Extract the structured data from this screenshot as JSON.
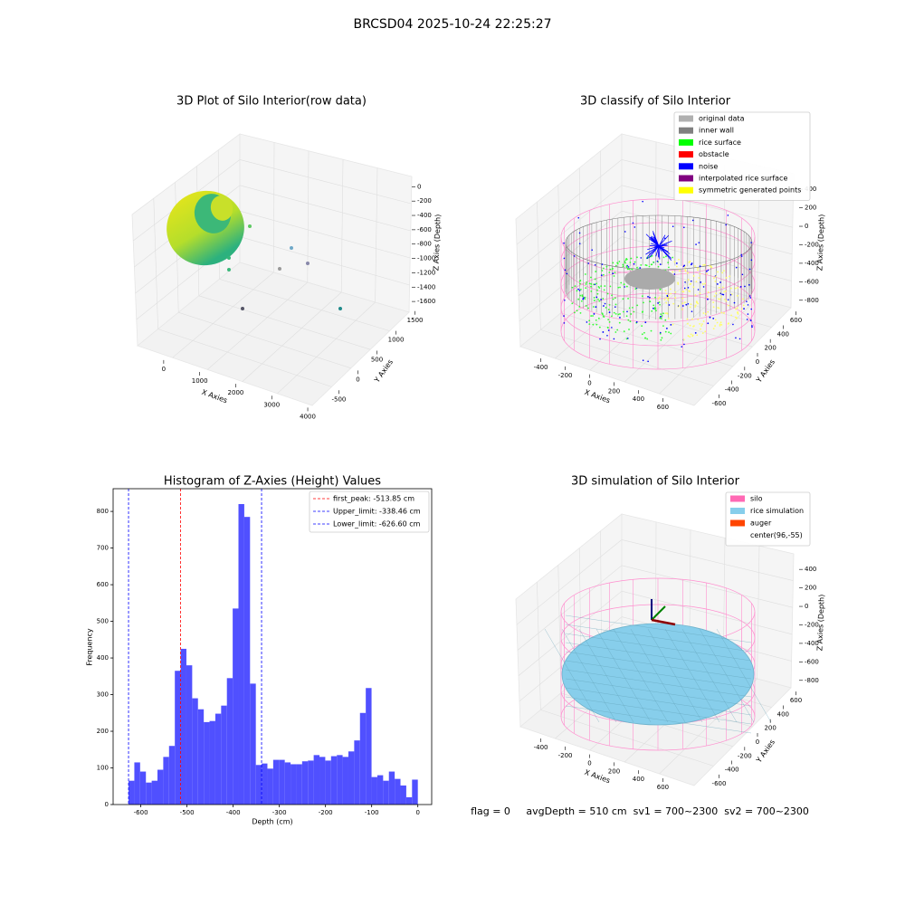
{
  "suptitle": "BRCSD04 2025-10-24 22:25:27",
  "chart_data": [
    {
      "type": "scatter3d",
      "title": "3D Plot of Silo Interior(row data)",
      "xlabel": "X Axies",
      "ylabel": "Y Axies",
      "zlabel": "Z Axies (Depth)",
      "xlim": [
        -600,
        4200
      ],
      "xticks": [
        0,
        1000,
        2000,
        3000,
        4000
      ],
      "ylim": [
        -700,
        1700
      ],
      "yticks": [
        -500,
        0,
        500,
        1000,
        1500
      ],
      "zlim": [
        -1750,
        80
      ],
      "zticks": [
        0,
        -200,
        -400,
        -600,
        -800,
        -1000,
        -1200,
        -1400,
        -1600
      ]
    },
    {
      "type": "scatter3d",
      "title": "3D classify of Silo Interior",
      "xlabel": "X Axies",
      "ylabel": "Y Axies",
      "zlabel": "Z Axies (Depth)",
      "xlim": [
        -560,
        760
      ],
      "xticks": [
        -400,
        -200,
        0,
        200,
        400,
        600
      ],
      "ylim": [
        -720,
        720
      ],
      "yticks": [
        -600,
        -400,
        -200,
        0,
        200,
        400,
        600
      ],
      "zlim": [
        -900,
        470
      ],
      "zticks": [
        400,
        200,
        0,
        -200,
        -400,
        -600,
        -800
      ],
      "series": [
        {
          "name": "original data",
          "color": "#b0b0b0"
        },
        {
          "name": "inner wall",
          "color": "#808080"
        },
        {
          "name": "rice surface",
          "color": "#00ff00"
        },
        {
          "name": "obstacle",
          "color": "#ff0000"
        },
        {
          "name": "noise",
          "color": "#0000ff"
        },
        {
          "name": "interpolated rice surface",
          "color": "#800080"
        },
        {
          "name": "symmetric generated points",
          "color": "#ffff00"
        }
      ]
    },
    {
      "type": "histogram",
      "title": "Histogram of Z-Axies (Height) Values",
      "xlabel": "Depth (cm)",
      "ylabel": "Frequency",
      "color": "#5050ff",
      "bins": [
        -626.6,
        -614.07,
        -601.54,
        -589.0,
        -576.47,
        -563.94,
        -551.41,
        -538.88,
        -526.34,
        -513.81,
        -501.28,
        -488.75,
        -476.22,
        -463.68,
        -451.15,
        -438.62,
        -426.09,
        -413.56,
        -401.02,
        -388.49,
        -375.96,
        -363.43,
        -350.9,
        -338.36,
        -325.83,
        -313.3,
        -300.77,
        -288.24,
        -275.7,
        -263.17,
        -250.64,
        -238.11,
        -225.58,
        -213.04,
        -200.51,
        -187.98,
        -175.45,
        -162.92,
        -150.38,
        -137.85,
        -125.32,
        -112.79,
        -100.26,
        -87.72,
        -75.19,
        -62.66,
        -50.13,
        -37.6,
        -25.06,
        -12.53,
        0
      ],
      "values": [
        65,
        115,
        90,
        60,
        65,
        95,
        130,
        160,
        365,
        425,
        380,
        290,
        260,
        225,
        228,
        248,
        270,
        345,
        535,
        820,
        785,
        330,
        108,
        112,
        98,
        122,
        122,
        115,
        110,
        110,
        118,
        120,
        135,
        130,
        120,
        132,
        135,
        130,
        145,
        175,
        250,
        318,
        75,
        80,
        65,
        90,
        70,
        52,
        20,
        68
      ],
      "lines": [
        {
          "label": "first_peak: -513.85 cm",
          "value": -513.85,
          "color": "#ff0000"
        },
        {
          "label": "Upper_limit: -338.46 cm",
          "value": -338.46,
          "color": "#0000ff"
        },
        {
          "label": "Lower_limit: -626.60 cm",
          "value": -626.6,
          "color": "#0000ff"
        }
      ],
      "xlim": [
        -660,
        30
      ],
      "xticks": [
        -600,
        -500,
        -400,
        -300,
        -200,
        -100,
        0
      ],
      "ylim": [
        0,
        862
      ],
      "yticks": [
        0,
        100,
        200,
        300,
        400,
        500,
        600,
        700,
        800
      ]
    },
    {
      "type": "wireframe3d",
      "title": "3D simulation of Silo Interior",
      "xlabel": "X Axies",
      "ylabel": "Y Axies",
      "zlabel": "Z Axies (Depth)",
      "xlim": [
        -560,
        760
      ],
      "xticks": [
        -400,
        -200,
        0,
        200,
        400,
        600
      ],
      "ylim": [
        -720,
        720
      ],
      "yticks": [
        -600,
        -400,
        -200,
        0,
        200,
        400,
        600
      ],
      "zlim": [
        -900,
        480
      ],
      "zticks": [
        400,
        200,
        0,
        -200,
        -400,
        -600,
        -800
      ],
      "series": [
        {
          "name": "silo",
          "color": "#ff69b4"
        },
        {
          "name": "rice simulation",
          "color": "#87ceeb"
        },
        {
          "name": "auger",
          "color": "#ff4500"
        },
        {
          "name": "center(96,-55)",
          "color": "#ffffff"
        }
      ]
    }
  ],
  "footer": "flag = 0     avgDepth = 510 cm  sv1 = 700~2300  sv2 = 700~2300"
}
